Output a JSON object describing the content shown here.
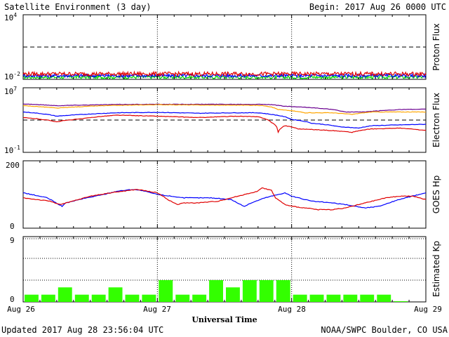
{
  "header": {
    "title": "Satellite Environment (3 day)",
    "begin": "Begin:  2017 Aug 26 0000 UTC"
  },
  "footer": {
    "updated": "Updated 2017 Aug 28 23:56:04 UTC",
    "credit": "NOAA/SWPC Boulder, CO USA"
  },
  "x_axis": {
    "label": "Universal Time",
    "ticks": [
      "Aug 26",
      "Aug 27",
      "Aug 28",
      "Aug 29"
    ]
  },
  "colors": {
    "red": "#e00000",
    "blue": "#0000ff",
    "green": "#00dd00",
    "orange": "#ffa500",
    "purple": "#6a0090",
    "bar": "#33ff00"
  },
  "chart_data": [
    {
      "type": "line",
      "ylabel": "Proton Flux",
      "ytick_labels": {
        "top_base": "10",
        "top_exp": "4",
        "bottom_base": "10",
        "bottom_exp": "-2"
      },
      "yscale": "log",
      "ylim": [
        0.01,
        10000
      ],
      "xlim_days": [
        0,
        3
      ],
      "threshold": 10,
      "series": [
        {
          "color": "red",
          "level": 0.032,
          "noise": 0.18
        },
        {
          "color": "blue",
          "level": 0.022,
          "noise": 0.15
        },
        {
          "color": "green",
          "level": 0.016,
          "noise": 0.15
        }
      ]
    },
    {
      "type": "line",
      "ylabel": "Electron Flux",
      "ytick_labels": {
        "top_base": "10",
        "top_exp": "7",
        "bottom_base": "10",
        "bottom_exp": "-1"
      },
      "yscale": "log",
      "ylim": [
        0.1,
        10000000
      ],
      "threshold": 1000,
      "series": [
        {
          "color": "purple",
          "points": [
            [
              0,
              100000
            ],
            [
              0.25,
              60000
            ],
            [
              0.4,
              70000
            ],
            [
              0.7,
              85000
            ],
            [
              1.0,
              90000
            ],
            [
              1.4,
              90000
            ],
            [
              1.8,
              90000
            ],
            [
              1.85,
              80000
            ],
            [
              1.95,
              50000
            ],
            [
              2.2,
              30000
            ],
            [
              2.4,
              10000
            ],
            [
              2.55,
              10000
            ],
            [
              2.8,
              20000
            ],
            [
              3,
              22000
            ]
          ]
        },
        {
          "color": "orange",
          "points": [
            [
              0,
              60000
            ],
            [
              0.25,
              30000
            ],
            [
              0.6,
              60000
            ],
            [
              1.0,
              80000
            ],
            [
              1.4,
              70000
            ],
            [
              1.7,
              70000
            ],
            [
              1.8,
              60000
            ],
            [
              1.9,
              20000
            ],
            [
              2.1,
              8000
            ],
            [
              2.3,
              8000
            ],
            [
              2.45,
              5000
            ],
            [
              2.6,
              10000
            ],
            [
              2.8,
              10000
            ],
            [
              3,
              10000
            ]
          ]
        },
        {
          "color": "blue",
          "points": [
            [
              0,
              10000
            ],
            [
              0.25,
              3000
            ],
            [
              0.45,
              5000
            ],
            [
              0.7,
              8000
            ],
            [
              1.0,
              9000
            ],
            [
              1.3,
              7000
            ],
            [
              1.6,
              8000
            ],
            [
              1.75,
              8000
            ],
            [
              1.85,
              5000
            ],
            [
              2.0,
              1200
            ],
            [
              2.15,
              400
            ],
            [
              2.35,
              150
            ],
            [
              2.5,
              100
            ],
            [
              2.6,
              200
            ],
            [
              2.8,
              250
            ],
            [
              3,
              300
            ]
          ]
        },
        {
          "color": "red",
          "points": [
            [
              0,
              2000
            ],
            [
              0.25,
              600
            ],
            [
              0.45,
              1500
            ],
            [
              0.7,
              4000
            ],
            [
              1.0,
              3000
            ],
            [
              1.3,
              2000
            ],
            [
              1.6,
              3000
            ],
            [
              1.75,
              2500
            ],
            [
              1.85,
              500
            ],
            [
              1.9,
              30
            ],
            [
              1.95,
              200
            ],
            [
              2.05,
              80
            ],
            [
              2.3,
              50
            ],
            [
              2.45,
              30
            ],
            [
              2.6,
              80
            ],
            [
              2.8,
              100
            ],
            [
              3,
              50
            ]
          ]
        }
      ]
    },
    {
      "type": "line",
      "ylabel": "GOES Hp",
      "ytick_labels": [
        "0",
        "200"
      ],
      "ylim": [
        0,
        200
      ],
      "series": [
        {
          "color": "blue",
          "points": [
            [
              0,
              105
            ],
            [
              0.18,
              90
            ],
            [
              0.29,
              65
            ],
            [
              0.32,
              75
            ],
            [
              0.45,
              88
            ],
            [
              0.6,
              100
            ],
            [
              0.7,
              110
            ],
            [
              0.82,
              115
            ],
            [
              0.88,
              112
            ],
            [
              1.0,
              100
            ],
            [
              1.2,
              90
            ],
            [
              1.4,
              90
            ],
            [
              1.55,
              85
            ],
            [
              1.62,
              70
            ],
            [
              1.65,
              65
            ],
            [
              1.7,
              75
            ],
            [
              1.8,
              90
            ],
            [
              1.85,
              95
            ],
            [
              1.95,
              105
            ],
            [
              2.0,
              95
            ],
            [
              2.15,
              80
            ],
            [
              2.3,
              75
            ],
            [
              2.4,
              70
            ],
            [
              2.55,
              60
            ],
            [
              2.65,
              65
            ],
            [
              2.8,
              85
            ],
            [
              3,
              105
            ]
          ]
        },
        {
          "color": "red",
          "points": [
            [
              0,
              90
            ],
            [
              0.2,
              80
            ],
            [
              0.28,
              70
            ],
            [
              0.35,
              78
            ],
            [
              0.5,
              95
            ],
            [
              0.65,
              105
            ],
            [
              0.75,
              110
            ],
            [
              0.85,
              115
            ],
            [
              1.0,
              105
            ],
            [
              1.1,
              80
            ],
            [
              1.15,
              70
            ],
            [
              1.2,
              75
            ],
            [
              1.3,
              75
            ],
            [
              1.45,
              80
            ],
            [
              1.55,
              90
            ],
            [
              1.65,
              100
            ],
            [
              1.75,
              110
            ],
            [
              1.78,
              120
            ],
            [
              1.85,
              112
            ],
            [
              1.88,
              90
            ],
            [
              1.95,
              70
            ],
            [
              2.0,
              65
            ],
            [
              2.1,
              60
            ],
            [
              2.2,
              55
            ],
            [
              2.3,
              55
            ],
            [
              2.4,
              60
            ],
            [
              2.5,
              70
            ],
            [
              2.6,
              80
            ],
            [
              2.7,
              90
            ],
            [
              2.8,
              95
            ],
            [
              2.9,
              95
            ],
            [
              3,
              85
            ]
          ]
        }
      ]
    },
    {
      "type": "bar",
      "ylabel": "Estimated Kp",
      "ytick_labels": [
        "0",
        "9"
      ],
      "ylim": [
        0,
        9
      ],
      "values": [
        1,
        1,
        2,
        1,
        1,
        2,
        1,
        1,
        3,
        1,
        1,
        3,
        2,
        3,
        3,
        3,
        1,
        1,
        1,
        1,
        1,
        1,
        0.1,
        0
      ]
    }
  ]
}
